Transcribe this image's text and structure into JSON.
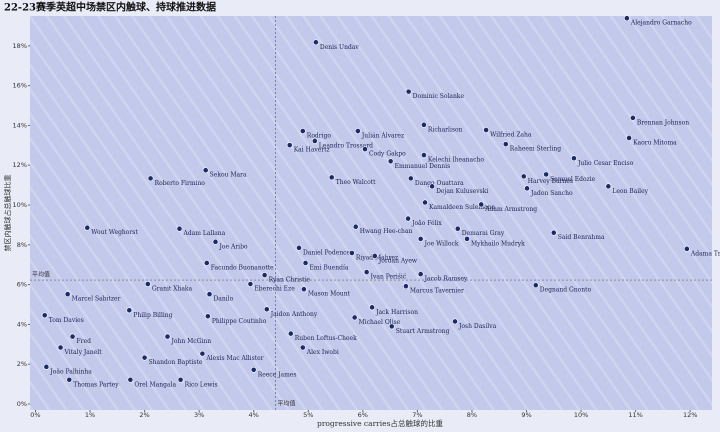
{
  "chart_data": {
    "type": "scatter",
    "title": "22-23赛季英超中场禁区内触球、持球推进数据",
    "x_label": "progressive carries占总触球的比重",
    "y_label": "禁区内触球占总触球比重",
    "color": "#1b2a6b",
    "label_color": "#1a2250",
    "mean_x": 4.4,
    "mean_y": 6.23,
    "mean_x_label": "平均值",
    "mean_y_label": "平均值",
    "xlim": [
      -0.1,
      12.4
    ],
    "ylim": [
      -0.3,
      19.5
    ],
    "xticks": [
      {
        "value": 0,
        "label": "0%"
      },
      {
        "value": 1,
        "label": "1%"
      },
      {
        "value": 2,
        "label": "2%"
      },
      {
        "value": 3,
        "label": "3%"
      },
      {
        "value": 4,
        "label": "4%"
      },
      {
        "value": 5,
        "label": "5%"
      },
      {
        "value": 6,
        "label": "6%"
      },
      {
        "value": 7,
        "label": "7%"
      },
      {
        "value": 8,
        "label": "8%"
      },
      {
        "value": 9,
        "label": "9%"
      },
      {
        "value": 10,
        "label": "10%"
      },
      {
        "value": 11,
        "label": "11%"
      },
      {
        "value": 12,
        "label": "12%"
      }
    ],
    "yticks": [
      {
        "value": 0,
        "label": "0%"
      },
      {
        "value": 2,
        "label": "2%"
      },
      {
        "value": 4,
        "label": "4%"
      },
      {
        "value": 6,
        "label": "6%"
      },
      {
        "value": 8,
        "label": "8%"
      },
      {
        "value": 10,
        "label": "10%"
      },
      {
        "value": 12,
        "label": "12%"
      },
      {
        "value": 14,
        "label": "14%"
      },
      {
        "value": 16,
        "label": "16%"
      },
      {
        "value": 18,
        "label": "18%"
      }
    ],
    "labels": [
      "Alejandro Garnacho",
      "Denis Undav",
      "Dominic Solanke",
      "Brennan Johnson",
      "Rodrigo",
      "Julián Álvarez",
      "Richarlison",
      "Wilfried Zaha",
      "Leandro Trossard",
      "Kaoru Mitoma",
      "Raheem Sterling",
      "Kai Havertz",
      "Cody Gakpo",
      "Kelechi Iheanacho",
      "Emmanuel Dennis",
      "Julio Cesar Enciso",
      "Samuel Edozie",
      "Roberto Firmino",
      "Sekou Mara",
      "Theo Walcott",
      "Dango Ouattara",
      "Harvey Barnes",
      "Dejan Kulusevski",
      "Jadon Sancho",
      "Leon Bailey",
      "Kamaldeen Sulemana",
      "Adam Armstrong",
      "Wout Weghorst",
      "João Félix",
      "Hwang Hee-chan",
      "Demarai Gray",
      "Adam Lallana",
      "Mykhailo Mudryk",
      "Joe Willock",
      "Said Benrahma",
      "Joe Aribo",
      "Adama Traoré",
      "Daniel Podence",
      "Riyad Mahrez",
      "Emi Buendía",
      "Facundo Buonanotte",
      "Jordan Ayew",
      "Ivan Perišić",
      "Jacob Ramsey",
      "Ryan Christie",
      "Eberechi Eze",
      "Marcus Tavernier",
      "Degnand Gnonto",
      "Granit Xhaka",
      "Marcel Sabitzer",
      "Mason Mount",
      "Danilo",
      "Philip Billing",
      "Tom Davies",
      "Jaidon Anthony",
      "Jack Harrison",
      "Michael Olise",
      "Philippe Coutinho",
      "Stuart Armstrong",
      "Josh Dasilva",
      "Ruben Loftus-Cheek",
      "Fred",
      "John McGinn",
      "Vitaly Janelt",
      "Alex Iwobi",
      "Alexis Mac Allister",
      "Shandon Baptiste",
      "João Palhinha",
      "Reece James",
      "Rico Lewis",
      "Thomas Partey",
      "Orel Mangala"
    ],
    "x": [
      10.84,
      5.14,
      6.84,
      10.95,
      4.9,
      5.91,
      7.12,
      8.26,
      5.12,
      10.88,
      8.62,
      4.66,
      6.04,
      7.12,
      6.51,
      9.87,
      9.36,
      2.11,
      3.12,
      5.43,
      6.88,
      8.95,
      7.27,
      9.01,
      10.5,
      7.14,
      8.17,
      0.95,
      6.83,
      5.87,
      7.74,
      2.64,
      7.91,
      7.06,
      9.5,
      3.3,
      11.94,
      4.83,
      5.8,
      4.95,
      3.14,
      6.22,
      6.07,
      7.06,
      4.2,
      3.94,
      6.79,
      9.17,
      2.06,
      0.59,
      4.92,
      3.19,
      1.72,
      0.17,
      4.24,
      6.17,
      5.85,
      3.16,
      6.53,
      7.69,
      4.68,
      0.68,
      2.42,
      0.46,
      4.9,
      3.06,
      2.0,
      0.2,
      4.0,
      2.66,
      0.62,
      1.74
    ],
    "values": [
      19.39,
      18.18,
      15.7,
      14.38,
      13.72,
      13.72,
      14.03,
      13.77,
      13.22,
      13.37,
      13.06,
      13.01,
      12.81,
      12.51,
      12.2,
      12.35,
      11.54,
      11.34,
      11.75,
      11.39,
      11.34,
      11.44,
      10.94,
      10.84,
      10.94,
      10.13,
      10.03,
      8.86,
      9.32,
      8.91,
      8.81,
      8.81,
      8.3,
      8.3,
      8.61,
      8.15,
      7.8,
      7.85,
      7.59,
      7.09,
      7.09,
      7.44,
      6.63,
      6.53,
      6.48,
      6.03,
      5.92,
      5.97,
      6.03,
      5.52,
      5.77,
      5.52,
      4.71,
      4.46,
      4.76,
      4.86,
      4.35,
      4.41,
      3.9,
      4.15,
      3.54,
      3.39,
      3.39,
      2.84,
      2.84,
      2.53,
      2.33,
      1.87,
      1.72,
      1.22,
      1.22,
      1.22
    ]
  }
}
